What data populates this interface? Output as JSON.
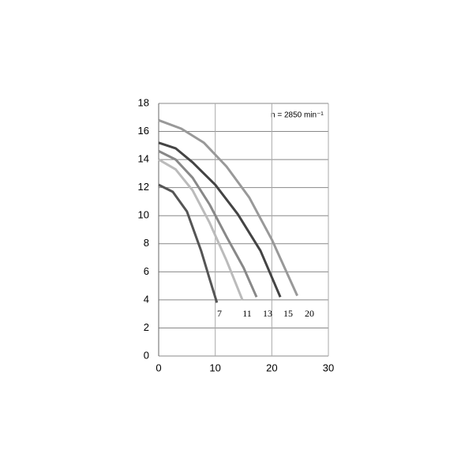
{
  "chart_data": {
    "type": "line",
    "annotation": "n = 2850 min⁻¹",
    "series": [
      {
        "name": "7",
        "color": "#555555",
        "x": [
          0,
          2.5,
          5,
          7.5,
          9,
          10.3
        ],
        "values": [
          12.2,
          11.7,
          10.3,
          7.5,
          5.5,
          3.8
        ]
      },
      {
        "name": "11",
        "color": "#bbbbbb",
        "x": [
          0,
          3,
          6,
          9,
          12,
          14.8
        ],
        "values": [
          14.0,
          13.3,
          11.8,
          9.5,
          6.8,
          4.0
        ]
      },
      {
        "name": "13",
        "color": "#888888",
        "x": [
          0,
          3,
          6,
          9,
          12,
          15,
          17.3
        ],
        "values": [
          14.6,
          14.0,
          12.7,
          10.8,
          8.5,
          6.3,
          4.2
        ]
      },
      {
        "name": "15",
        "color": "#444444",
        "x": [
          0,
          3,
          6,
          10,
          14,
          18,
          21.5
        ],
        "values": [
          15.2,
          14.8,
          13.8,
          12.2,
          10.1,
          7.5,
          4.2
        ]
      },
      {
        "name": "20",
        "color": "#999999",
        "x": [
          0,
          4,
          8,
          12,
          16,
          20,
          24.5
        ],
        "values": [
          16.8,
          16.2,
          15.2,
          13.5,
          11.3,
          8.3,
          4.3
        ]
      }
    ],
    "xlim": [
      0,
      30
    ],
    "xticks": [
      0,
      10,
      20,
      30
    ],
    "ylim": [
      0,
      18
    ],
    "yticks": [
      0,
      2,
      4,
      6,
      8,
      10,
      12,
      14,
      16,
      18
    ],
    "grid": true
  }
}
